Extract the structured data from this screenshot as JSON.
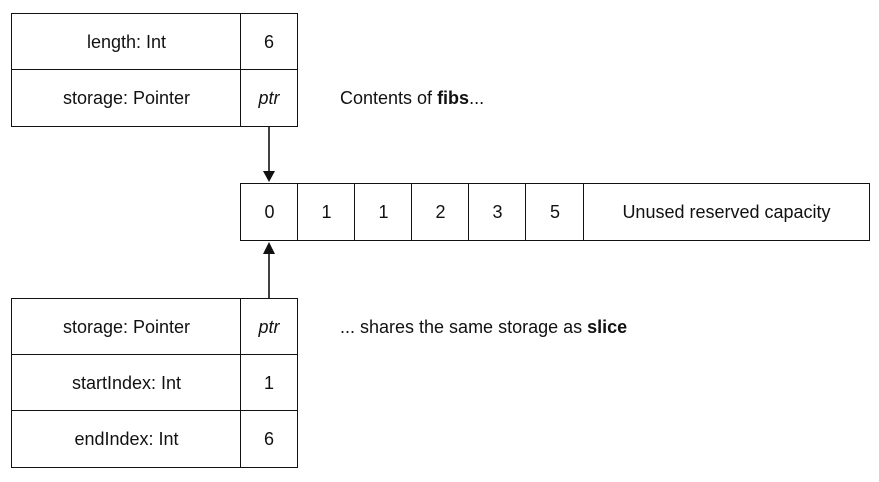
{
  "top_struct": {
    "rows": [
      {
        "label": "length: Int",
        "value": "6",
        "value_italic": false
      },
      {
        "label": "storage: Pointer",
        "value": "ptr",
        "value_italic": true
      }
    ],
    "caption_prefix": "Contents of ",
    "caption_bold": "fibs",
    "caption_suffix": "..."
  },
  "storage_array": {
    "elements": [
      "0",
      "1",
      "1",
      "2",
      "3",
      "5"
    ],
    "unused_label": "Unused reserved capacity"
  },
  "bottom_struct": {
    "rows": [
      {
        "label": "storage: Pointer",
        "value": "ptr",
        "value_italic": true
      },
      {
        "label": "startIndex: Int",
        "value": "1",
        "value_italic": false
      },
      {
        "label": "endIndex: Int",
        "value": "6",
        "value_italic": false
      }
    ],
    "caption_prefix": "... shares the same storage as ",
    "caption_bold": "slice"
  }
}
